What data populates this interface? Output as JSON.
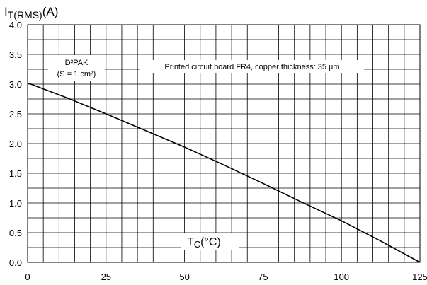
{
  "chart_data": {
    "type": "line",
    "title": "",
    "xlabel": {
      "main": "T",
      "sub": "C",
      "unit": "(°C)"
    },
    "ylabel": {
      "main": "I",
      "sub": "T(RMS)",
      "unit": "(A)"
    },
    "xlim": [
      0,
      125
    ],
    "ylim": [
      0,
      4
    ],
    "x_ticks": [
      0,
      25,
      50,
      75,
      100,
      125
    ],
    "y_ticks": [
      "0.0",
      "0.5",
      "1.0",
      "1.5",
      "2.0",
      "2.5",
      "3.0",
      "3.5",
      "4.0"
    ],
    "grid": true,
    "grid_minor_x": 5,
    "grid_minor_y": 0.25,
    "series": [
      {
        "x": [
          0,
          12.5,
          25,
          37.5,
          50,
          62.5,
          75,
          87.5,
          100,
          112.5,
          125
        ],
        "y": [
          3.02,
          2.77,
          2.5,
          2.22,
          1.94,
          1.64,
          1.33,
          1.01,
          0.7,
          0.36,
          0.0
        ]
      }
    ],
    "annotations": {
      "package_line1": "D²PAK",
      "package_line2": "(S = 1 cm²)",
      "board_note": "Printed circuit board FR4, copper thickness: 35 µm"
    }
  }
}
